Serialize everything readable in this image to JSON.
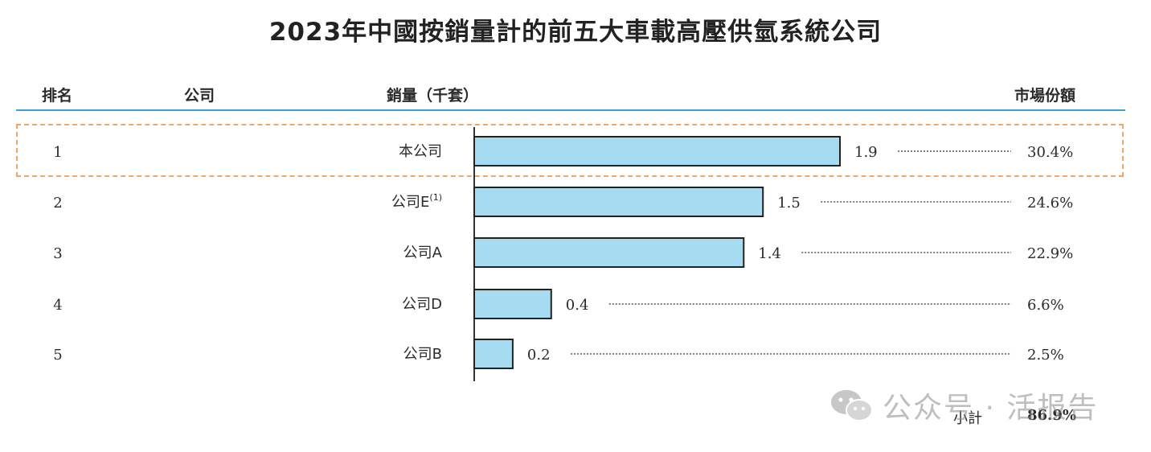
{
  "colors": {
    "bar_fill": "#a6dcf1",
    "bar_stroke": "#222222",
    "header_rule": "#3aa0d8",
    "highlight_border": "#f0a868",
    "text": "#2a2a2a"
  },
  "headers": {
    "rank": "排名",
    "company": "公司",
    "sales": "銷量（千套）",
    "share": "市場份額"
  },
  "subtotal": {
    "label": "小計",
    "value": "86.9%"
  },
  "watermark": {
    "text": "公众号 · 活报告",
    "icon": "wechat-icon"
  },
  "chart_data": {
    "type": "bar",
    "title": "2023年中國按銷量計的前五大車載高壓供氫系統公司",
    "orientation": "horizontal",
    "xlabel": "銷量（千套）",
    "xlim": [
      0,
      1.9
    ],
    "grid": false,
    "highlighted_row": 0,
    "rows": [
      {
        "rank": "1",
        "company": "本公司",
        "value": 1.9,
        "value_label": "1.9",
        "share": "30.4%"
      },
      {
        "rank": "2",
        "company": "公司E",
        "footnote": "(1)",
        "value": 1.5,
        "value_label": "1.5",
        "share": "24.6%"
      },
      {
        "rank": "3",
        "company": "公司A",
        "value": 1.4,
        "value_label": "1.4",
        "share": "22.9%"
      },
      {
        "rank": "4",
        "company": "公司D",
        "value": 0.4,
        "value_label": "0.4",
        "share": "6.6%"
      },
      {
        "rank": "5",
        "company": "公司B",
        "value": 0.2,
        "value_label": "0.2",
        "share": "2.5%"
      }
    ]
  }
}
